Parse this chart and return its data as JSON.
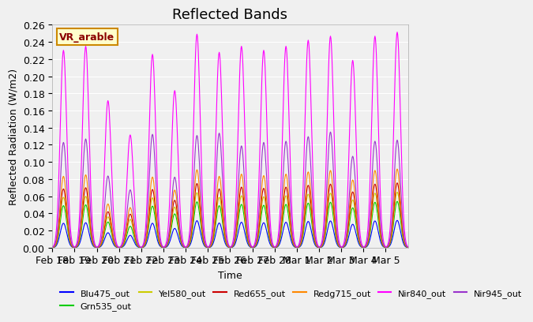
{
  "title": "Reflected Bands",
  "xlabel": "Time",
  "ylabel": "Reflected Radiation (W/m2)",
  "annotation": "VR_arable",
  "ylim": [
    0.0,
    0.26
  ],
  "yticks": [
    0.0,
    0.02,
    0.04,
    0.06,
    0.08,
    0.1,
    0.12,
    0.14,
    0.16,
    0.18,
    0.2,
    0.22,
    0.24,
    0.26
  ],
  "xtick_labels": [
    "Feb 18",
    "Feb 19",
    "Feb 20",
    "Feb 21",
    "Feb 22",
    "Feb 23",
    "Feb 24",
    "Feb 25",
    "Feb 26",
    "Feb 27",
    "Feb 28",
    "Mar 1",
    "Mar 2",
    "Mar 3",
    "Mar 4",
    "Mar 5"
  ],
  "series": [
    {
      "label": "Blu475_out",
      "color": "#0000ff",
      "scale": 0.03
    },
    {
      "label": "Grn535_out",
      "color": "#00cc00",
      "scale": 0.05
    },
    {
      "label": "Yel580_out",
      "color": "#cccc00",
      "scale": 0.06
    },
    {
      "label": "Red655_out",
      "color": "#cc0000",
      "scale": 0.07
    },
    {
      "label": "Redg715_out",
      "color": "#ff8800",
      "scale": 0.085
    },
    {
      "label": "Nir840_out",
      "color": "#ff00ff",
      "scale": 0.235
    },
    {
      "label": "Nir945_out",
      "color": "#9933cc",
      "scale": 0.135
    }
  ],
  "n_days": 16,
  "n_points_per_day": 48,
  "background_color": "#f0f0f0",
  "grid_color": "#ffffff",
  "title_fontsize": 13,
  "label_fontsize": 9,
  "legend_fontsize": 8,
  "nir840_day_factors": [
    0.98,
    1.0,
    0.73,
    0.56,
    0.96,
    0.78,
    1.06,
    0.97,
    1.0,
    0.98,
    1.0,
    1.03,
    1.05,
    0.93,
    1.05,
    1.07
  ],
  "nir945_day_factors": [
    0.91,
    0.94,
    0.62,
    0.5,
    0.98,
    0.61,
    0.97,
    0.99,
    0.88,
    0.91,
    0.92,
    0.96,
    1.0,
    0.79,
    0.92,
    0.93
  ],
  "red_day_factors": [
    0.98,
    1.0,
    0.6,
    0.56,
    0.97,
    0.79,
    1.07,
    0.98,
    1.01,
    0.99,
    1.01,
    1.04,
    1.06,
    0.93,
    1.06,
    1.08
  ],
  "grn_day_factors": [
    0.98,
    1.0,
    0.6,
    0.5,
    0.97,
    0.79,
    1.07,
    0.98,
    1.01,
    0.99,
    1.01,
    1.04,
    1.06,
    0.93,
    1.06,
    1.08
  ],
  "blu_day_factors": [
    0.95,
    0.97,
    0.58,
    0.48,
    0.95,
    0.75,
    1.05,
    0.96,
    0.99,
    0.97,
    0.99,
    1.02,
    1.04,
    0.91,
    1.04,
    1.06
  ],
  "yel_day_factors": [
    0.98,
    1.0,
    0.6,
    0.55,
    0.97,
    0.79,
    1.07,
    0.98,
    1.01,
    0.99,
    1.01,
    1.04,
    1.06,
    0.93,
    1.06,
    1.08
  ],
  "redg_day_factors": [
    0.98,
    1.0,
    0.6,
    0.55,
    0.97,
    0.79,
    1.07,
    0.98,
    1.01,
    0.99,
    1.01,
    1.04,
    1.06,
    0.93,
    1.06,
    1.08
  ]
}
